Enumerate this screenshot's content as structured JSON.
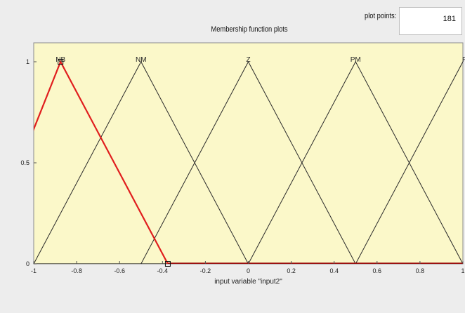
{
  "panel": {
    "plot_points_label": "plot points:",
    "plot_points_value": "181",
    "title": "Membership function plots"
  },
  "chart_data": {
    "type": "line",
    "title": "Membership function plots",
    "xlabel": "input variable \"input2\"",
    "ylabel": "",
    "xlim": [
      -1,
      1
    ],
    "ylim": [
      0,
      1.1
    ],
    "x_ticks": [
      -1,
      -0.8,
      -0.6,
      -0.4,
      -0.2,
      0,
      0.2,
      0.4,
      0.6,
      0.8,
      1
    ],
    "x_tick_labels": [
      "-1",
      "-0.8",
      "-0.6",
      "-0.4",
      "-0.2",
      "0",
      "0.2",
      "0.4",
      "0.6",
      "0.8",
      "1"
    ],
    "y_ticks": [
      0,
      0.5,
      1
    ],
    "y_tick_labels": [
      "0",
      "0.5",
      "1"
    ],
    "grid": false,
    "background_color": "#fbf8c9",
    "series": [
      {
        "name": "NB",
        "x": [
          -1.25,
          -0.875,
          -0.375
        ],
        "y": [
          0,
          1,
          0
        ],
        "color": "#e01e1e",
        "selected": true
      },
      {
        "name": "NM",
        "x": [
          -1,
          -0.5,
          0
        ],
        "y": [
          0,
          1,
          0
        ],
        "color": "#2a2a2a",
        "selected": false
      },
      {
        "name": "Z",
        "x": [
          -0.5,
          0,
          0.5
        ],
        "y": [
          0,
          1,
          0
        ],
        "color": "#2a2a2a",
        "selected": false
      },
      {
        "name": "PM",
        "x": [
          0,
          0.5,
          1
        ],
        "y": [
          0,
          1,
          0
        ],
        "color": "#2a2a2a",
        "selected": false
      },
      {
        "name": "PB",
        "x": [
          0.5,
          1,
          1.5
        ],
        "y": [
          0,
          1,
          0
        ],
        "color": "#2a2a2a",
        "selected": false
      }
    ],
    "selected_color": "#e01e1e",
    "selected_baseline_color": "#9a1010",
    "handles_x": [
      -0.875,
      -0.375
    ]
  }
}
